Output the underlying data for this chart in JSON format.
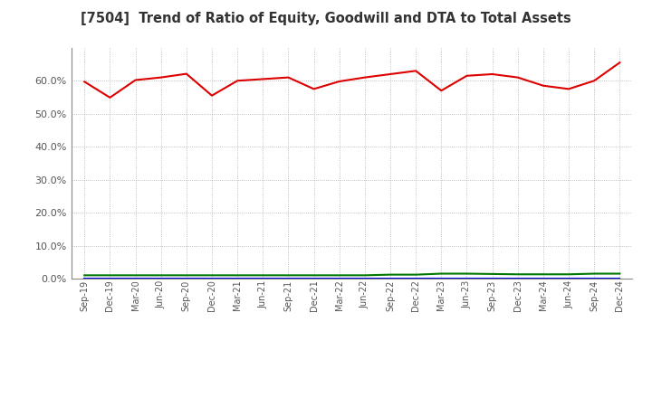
{
  "title": "[7504]  Trend of Ratio of Equity, Goodwill and DTA to Total Assets",
  "x_labels": [
    "Sep-19",
    "Dec-19",
    "Mar-20",
    "Jun-20",
    "Sep-20",
    "Dec-20",
    "Mar-21",
    "Jun-21",
    "Sep-21",
    "Dec-21",
    "Mar-22",
    "Jun-22",
    "Sep-22",
    "Dec-22",
    "Mar-23",
    "Jun-23",
    "Sep-23",
    "Dec-23",
    "Mar-24",
    "Jun-24",
    "Sep-24",
    "Dec-24"
  ],
  "equity": [
    0.597,
    0.549,
    0.602,
    0.61,
    0.621,
    0.555,
    0.6,
    0.605,
    0.61,
    0.575,
    0.598,
    0.61,
    0.62,
    0.63,
    0.57,
    0.615,
    0.62,
    0.61,
    0.585,
    0.575,
    0.6,
    0.655
  ],
  "goodwill": [
    0.0,
    0.0,
    0.0,
    0.0,
    0.0,
    0.0,
    0.0,
    0.0,
    0.0,
    0.0,
    0.0,
    0.0,
    0.0,
    0.0,
    0.0,
    0.0,
    0.0,
    0.0,
    0.0,
    0.0,
    0.0,
    0.0
  ],
  "dta": [
    0.01,
    0.01,
    0.01,
    0.01,
    0.01,
    0.01,
    0.01,
    0.01,
    0.01,
    0.01,
    0.01,
    0.01,
    0.012,
    0.012,
    0.015,
    0.015,
    0.014,
    0.013,
    0.013,
    0.013,
    0.015,
    0.015
  ],
  "equity_color": "#dd0000",
  "goodwill_color": "#0000dd",
  "dta_color": "#007700",
  "bg_color": "#ffffff",
  "grid_color": "#999999",
  "title_color": "#333333",
  "label_color": "#555555",
  "ylim": [
    0.0,
    0.7
  ],
  "yticks": [
    0.0,
    0.1,
    0.2,
    0.3,
    0.4,
    0.5,
    0.6
  ]
}
